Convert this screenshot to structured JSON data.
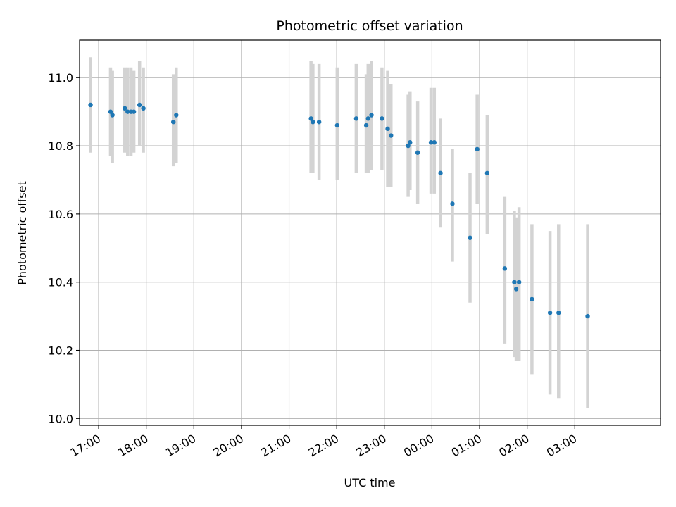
{
  "chart_data": {
    "type": "scatter",
    "title": "Photometric offset variation",
    "xlabel": "UTC time",
    "ylabel": "Photometric offset",
    "x_unit": "UTC time, hours after 00:00 on the first night; hours past 24 fall on the next day",
    "xlim": [
      16.6,
      28.8
    ],
    "ylim": [
      9.98,
      11.11
    ],
    "grid": true,
    "x_ticks": [
      {
        "x": 17,
        "label": "17:00"
      },
      {
        "x": 18,
        "label": "18:00"
      },
      {
        "x": 19,
        "label": "19:00"
      },
      {
        "x": 20,
        "label": "20:00"
      },
      {
        "x": 21,
        "label": "21:00"
      },
      {
        "x": 22,
        "label": "22:00"
      },
      {
        "x": 23,
        "label": "23:00"
      },
      {
        "x": 24,
        "label": "00:00"
      },
      {
        "x": 25,
        "label": "01:00"
      },
      {
        "x": 26,
        "label": "02:00"
      },
      {
        "x": 27,
        "label": "03:00"
      }
    ],
    "y_ticks": [
      {
        "y": 10.0,
        "label": "10.0"
      },
      {
        "y": 10.2,
        "label": "10.2"
      },
      {
        "y": 10.4,
        "label": "10.4"
      },
      {
        "y": 10.6,
        "label": "10.6"
      },
      {
        "y": 10.8,
        "label": "10.8"
      },
      {
        "y": 11.0,
        "label": "11.0"
      }
    ],
    "marker_color": "#1f77b4",
    "errorbar_color": "#d3d3d3",
    "points": [
      {
        "x": 16.83,
        "y": 10.92,
        "ylo": 10.78,
        "yhi": 11.06
      },
      {
        "x": 17.25,
        "y": 10.9,
        "ylo": 10.77,
        "yhi": 11.03
      },
      {
        "x": 17.29,
        "y": 10.89,
        "ylo": 10.75,
        "yhi": 11.02
      },
      {
        "x": 17.55,
        "y": 10.91,
        "ylo": 10.78,
        "yhi": 11.03
      },
      {
        "x": 17.61,
        "y": 10.9,
        "ylo": 10.77,
        "yhi": 11.03
      },
      {
        "x": 17.68,
        "y": 10.9,
        "ylo": 10.77,
        "yhi": 11.03
      },
      {
        "x": 17.74,
        "y": 10.9,
        "ylo": 10.78,
        "yhi": 11.02
      },
      {
        "x": 17.86,
        "y": 10.92,
        "ylo": 10.8,
        "yhi": 11.05
      },
      {
        "x": 17.94,
        "y": 10.91,
        "ylo": 10.78,
        "yhi": 11.03
      },
      {
        "x": 18.57,
        "y": 10.87,
        "ylo": 10.74,
        "yhi": 11.01
      },
      {
        "x": 18.63,
        "y": 10.89,
        "ylo": 10.75,
        "yhi": 11.03
      },
      {
        "x": 21.46,
        "y": 10.88,
        "ylo": 10.72,
        "yhi": 11.05
      },
      {
        "x": 21.5,
        "y": 10.87,
        "ylo": 10.72,
        "yhi": 11.04
      },
      {
        "x": 21.63,
        "y": 10.87,
        "ylo": 10.7,
        "yhi": 11.04
      },
      {
        "x": 22.01,
        "y": 10.86,
        "ylo": 10.7,
        "yhi": 11.03
      },
      {
        "x": 22.41,
        "y": 10.88,
        "ylo": 10.72,
        "yhi": 11.04
      },
      {
        "x": 22.62,
        "y": 10.86,
        "ylo": 10.72,
        "yhi": 11.01
      },
      {
        "x": 22.66,
        "y": 10.88,
        "ylo": 10.72,
        "yhi": 11.04
      },
      {
        "x": 22.73,
        "y": 10.89,
        "ylo": 10.73,
        "yhi": 11.05
      },
      {
        "x": 22.95,
        "y": 10.88,
        "ylo": 10.73,
        "yhi": 11.03
      },
      {
        "x": 23.07,
        "y": 10.85,
        "ylo": 10.68,
        "yhi": 11.02
      },
      {
        "x": 23.14,
        "y": 10.83,
        "ylo": 10.68,
        "yhi": 10.98
      },
      {
        "x": 23.5,
        "y": 10.8,
        "ylo": 10.65,
        "yhi": 10.95
      },
      {
        "x": 23.54,
        "y": 10.81,
        "ylo": 10.67,
        "yhi": 10.96
      },
      {
        "x": 23.7,
        "y": 10.78,
        "ylo": 10.63,
        "yhi": 10.93
      },
      {
        "x": 23.98,
        "y": 10.81,
        "ylo": 10.66,
        "yhi": 10.97
      },
      {
        "x": 24.05,
        "y": 10.81,
        "ylo": 10.66,
        "yhi": 10.97
      },
      {
        "x": 24.18,
        "y": 10.72,
        "ylo": 10.56,
        "yhi": 10.88
      },
      {
        "x": 24.43,
        "y": 10.63,
        "ylo": 10.46,
        "yhi": 10.79
      },
      {
        "x": 24.8,
        "y": 10.53,
        "ylo": 10.34,
        "yhi": 10.72
      },
      {
        "x": 24.95,
        "y": 10.79,
        "ylo": 10.63,
        "yhi": 10.95
      },
      {
        "x": 25.16,
        "y": 10.72,
        "ylo": 10.54,
        "yhi": 10.89
      },
      {
        "x": 25.53,
        "y": 10.44,
        "ylo": 10.22,
        "yhi": 10.65
      },
      {
        "x": 25.73,
        "y": 10.4,
        "ylo": 10.18,
        "yhi": 10.61
      },
      {
        "x": 25.77,
        "y": 10.38,
        "ylo": 10.17,
        "yhi": 10.59
      },
      {
        "x": 25.83,
        "y": 10.4,
        "ylo": 10.17,
        "yhi": 10.62
      },
      {
        "x": 26.1,
        "y": 10.35,
        "ylo": 10.13,
        "yhi": 10.57
      },
      {
        "x": 26.48,
        "y": 10.31,
        "ylo": 10.07,
        "yhi": 10.55
      },
      {
        "x": 26.66,
        "y": 10.31,
        "ylo": 10.06,
        "yhi": 10.57
      },
      {
        "x": 27.27,
        "y": 10.3,
        "ylo": 10.03,
        "yhi": 10.57
      }
    ]
  }
}
